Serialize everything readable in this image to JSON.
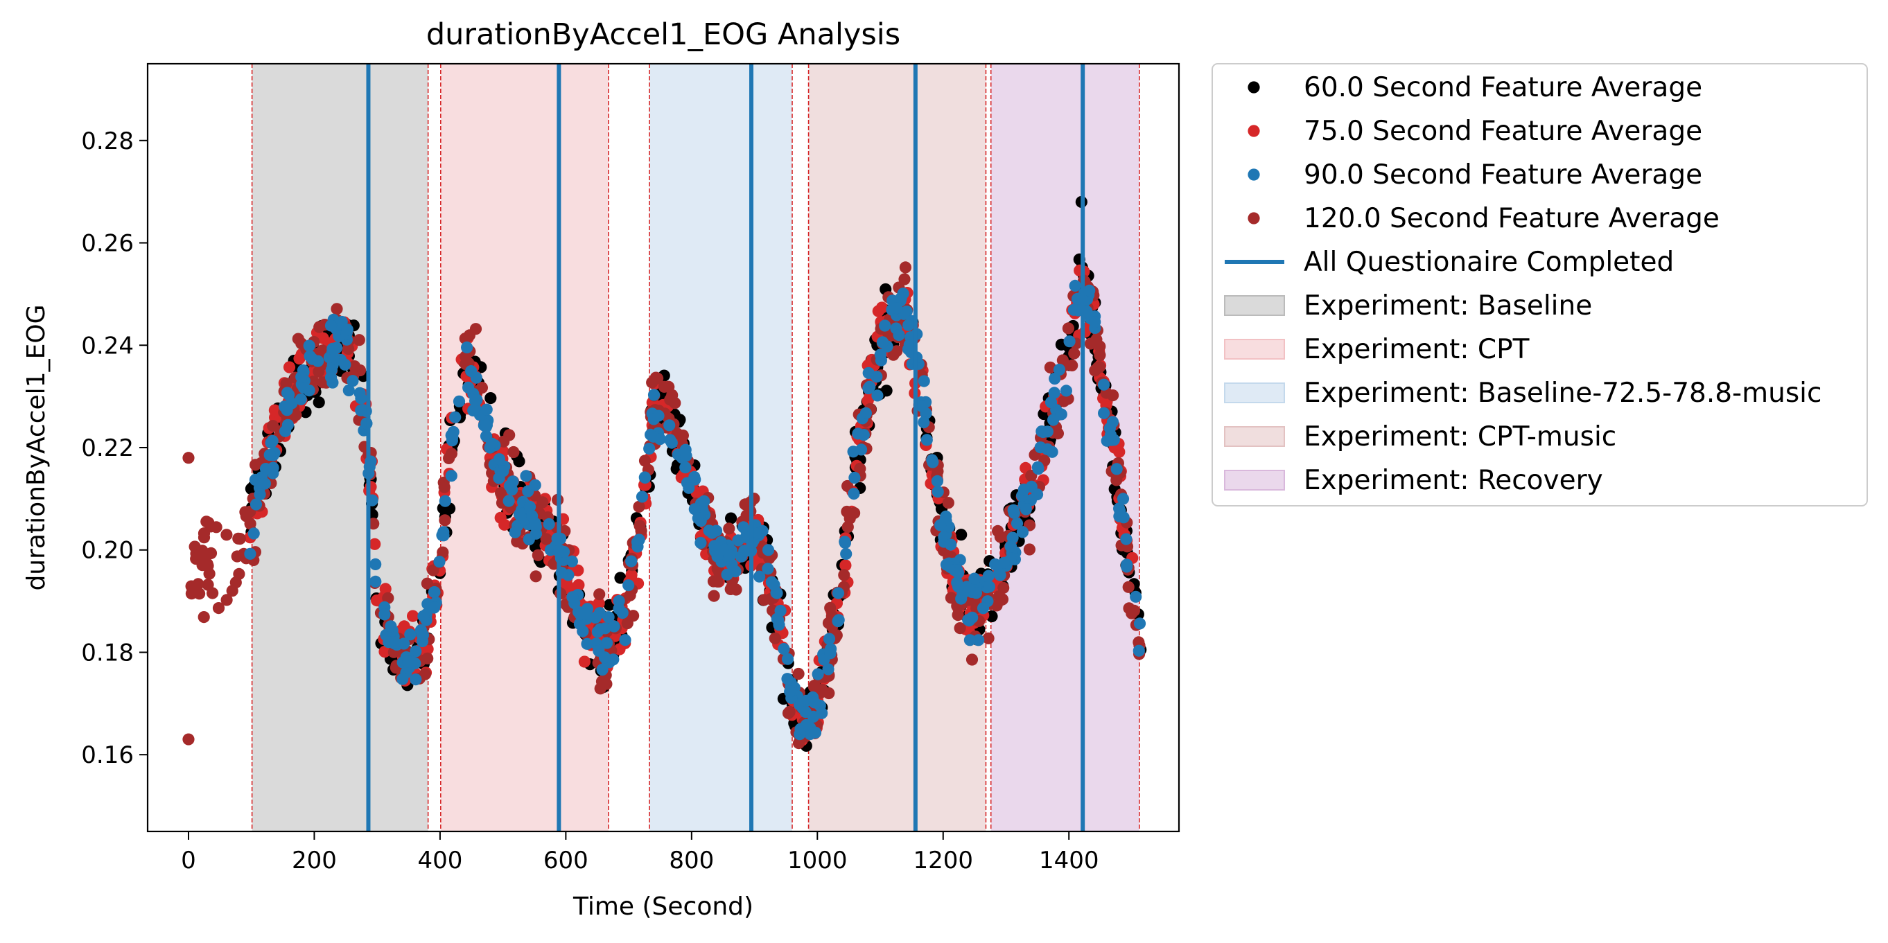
{
  "chart_data": {
    "type": "scatter",
    "title": "durationByAccel1_EOG Analysis",
    "xlabel": "Time (Second)",
    "ylabel": "durationByAccel1_EOG",
    "xlim": [
      -65,
      1575
    ],
    "ylim": [
      0.145,
      0.295
    ],
    "xticks": [
      0,
      200,
      400,
      600,
      800,
      1000,
      1200,
      1400
    ],
    "yticks": [
      0.16,
      0.18,
      0.2,
      0.22,
      0.24,
      0.26,
      0.28
    ],
    "xtick_labels": [
      "0",
      "200",
      "400",
      "600",
      "800",
      "1000",
      "1200",
      "1400"
    ],
    "ytick_labels": [
      "0.16",
      "0.18",
      "0.20",
      "0.22",
      "0.24",
      "0.26",
      "0.28"
    ],
    "grid": false,
    "legend_position": "outside-right",
    "experiments": [
      {
        "name": "Experiment: Baseline",
        "start": 101,
        "end": 381,
        "color": "#bbbbbb"
      },
      {
        "name": "Experiment: CPT",
        "start": 401,
        "end": 668,
        "color": "#f2c1c4"
      },
      {
        "name": "Experiment: Baseline-72.5-78.8-music",
        "start": 733,
        "end": 960,
        "color": "#c4d9ec"
      },
      {
        "name": "Experiment: CPT-music",
        "start": 986,
        "end": 1268,
        "color": "#e3c2c2"
      },
      {
        "name": "Experiment: Recovery",
        "start": 1276,
        "end": 1512,
        "color": "#d9b8dc"
      }
    ],
    "questionnaire": {
      "name": "All Questionaire Completed",
      "times": [
        286,
        589,
        895,
        1156,
        1422
      ],
      "color": "#1f77b4"
    },
    "anchors": {
      "x": [
        0,
        20,
        40,
        60,
        80,
        100,
        120,
        140,
        160,
        180,
        200,
        220,
        240,
        260,
        280,
        290,
        300,
        320,
        340,
        360,
        380,
        400,
        420,
        440,
        460,
        480,
        500,
        520,
        540,
        560,
        580,
        600,
        620,
        640,
        660,
        680,
        700,
        720,
        740,
        760,
        780,
        800,
        820,
        840,
        860,
        880,
        900,
        920,
        940,
        960,
        980,
        1000,
        1020,
        1040,
        1060,
        1080,
        1100,
        1120,
        1140,
        1160,
        1180,
        1200,
        1220,
        1240,
        1260,
        1280,
        1300,
        1320,
        1340,
        1360,
        1380,
        1400,
        1420,
        1440,
        1460,
        1480,
        1500,
        1515
      ],
      "y": [
        0.2,
        0.198,
        0.195,
        0.199,
        0.203,
        0.207,
        0.212,
        0.222,
        0.228,
        0.233,
        0.236,
        0.239,
        0.241,
        0.238,
        0.228,
        0.212,
        0.193,
        0.183,
        0.179,
        0.179,
        0.185,
        0.196,
        0.224,
        0.236,
        0.231,
        0.22,
        0.214,
        0.21,
        0.207,
        0.205,
        0.203,
        0.197,
        0.189,
        0.184,
        0.181,
        0.184,
        0.192,
        0.205,
        0.226,
        0.228,
        0.219,
        0.212,
        0.205,
        0.2,
        0.197,
        0.2,
        0.203,
        0.198,
        0.185,
        0.172,
        0.166,
        0.17,
        0.18,
        0.195,
        0.215,
        0.23,
        0.239,
        0.244,
        0.246,
        0.235,
        0.22,
        0.205,
        0.195,
        0.188,
        0.19,
        0.193,
        0.2,
        0.206,
        0.213,
        0.22,
        0.228,
        0.238,
        0.252,
        0.243,
        0.228,
        0.212,
        0.193,
        0.18
      ]
    },
    "series": [
      {
        "name": "60.0 Second Feature Average",
        "color": "#000000",
        "count": 520
      },
      {
        "name": "75.0 Second Feature Average",
        "color": "#d62728",
        "count": 500
      },
      {
        "name": "90.0 Second Feature Average",
        "color": "#1f77b4",
        "count": 500
      },
      {
        "name": "120.0 Second Feature Average",
        "color": "#a52a2a",
        "count": 560
      }
    ]
  }
}
